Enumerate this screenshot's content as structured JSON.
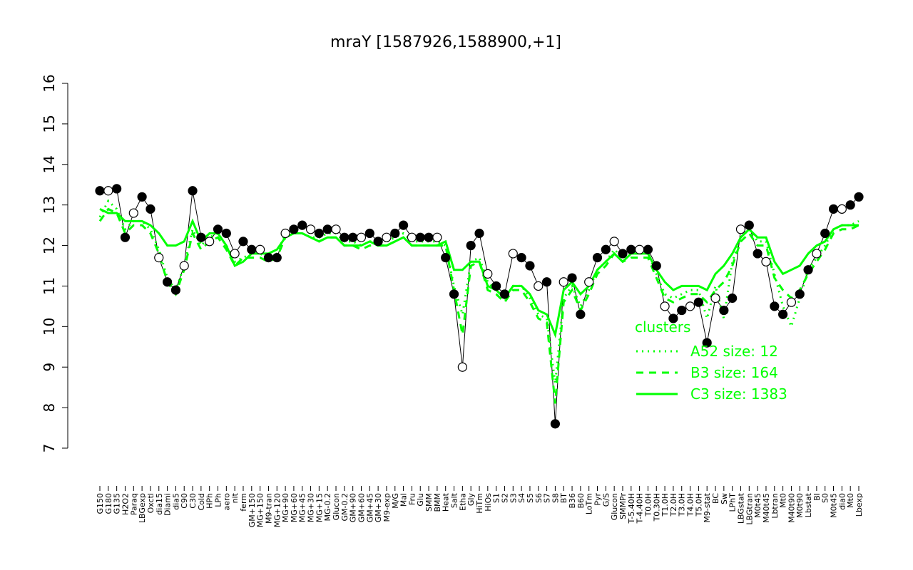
{
  "chart_data": {
    "type": "line",
    "title": "mraY [1587926,1588900,+1]",
    "ylim": [
      7,
      16
    ],
    "yticks": [
      7,
      8,
      9,
      10,
      11,
      12,
      13,
      14,
      15,
      16
    ],
    "grid": false,
    "legend": {
      "title": "clusters",
      "placement": "right",
      "entries": [
        {
          "label": "A52 size: 12",
          "style": "dotted",
          "color": "#00ff00"
        },
        {
          "label": "B3 size: 164",
          "style": "dashed",
          "color": "#00ff00"
        },
        {
          "label": "C3 size: 1383",
          "style": "solid",
          "color": "#00ff00"
        }
      ]
    },
    "x_tick_labels": [
      "G150",
      "G180",
      "G135",
      "H2O2",
      "Paraq",
      "LBGexp",
      "Oxctl",
      "dia15",
      "Diami",
      "dia5",
      "C90",
      "C30",
      "Cold",
      "HPh",
      "LPh",
      "aero",
      "nit",
      "ferm",
      "GM+150",
      "MG+150",
      "M9-tran",
      "MG+120",
      "MG+90",
      "MG+60",
      "MG+45",
      "MG+30",
      "MG+15",
      "MG-0.2",
      "Glucon",
      "GM-0.2",
      "GM+90",
      "GM+60",
      "GM+45",
      "GM+30",
      "M9-exp",
      "M/G",
      "Mal",
      "Fru",
      "Glu",
      "SMM",
      "BMM",
      "Heat",
      "Salt",
      "Etha",
      "Gly",
      "HiTm",
      "HiOs",
      "S1",
      "S2",
      "S3",
      "S4",
      "S5",
      "S6",
      "S7",
      "S8",
      "BT",
      "B36",
      "B60",
      "LoTm",
      "Pyr",
      "G/S",
      "Glucon",
      "SMMPr",
      "T-5.40H",
      "T-4.40H",
      "T0.0H",
      "T0.30H",
      "T1.0H",
      "T2.0H",
      "T3.0H",
      "T4.0H",
      "T5.0H",
      "M9-stat",
      "BC",
      "Sw",
      "LPhT",
      "LBGstat",
      "LBGtran",
      "M0t45",
      "M40t45",
      "Lbtran",
      "Mt0",
      "M40t90",
      "M0t90",
      "Lbstat",
      "BI",
      "S0",
      "M0t45",
      "dia0",
      "Mt0",
      "Lbexp"
    ],
    "series": [
      {
        "name": "",
        "values": [
          13.35,
          13.35,
          13.4,
          12.2,
          12.8,
          13.2,
          12.9,
          11.7,
          11.1,
          10.9,
          11.5,
          13.35,
          12.2,
          12.1,
          12.4,
          12.3,
          11.8,
          12.1,
          11.9,
          11.9,
          11.7,
          11.7,
          12.3,
          12.4,
          12.5,
          12.4,
          12.3,
          12.4,
          12.4,
          12.2,
          12.2,
          12.2,
          12.3,
          12.1,
          12.2,
          12.3,
          12.5,
          12.2,
          12.2,
          12.2,
          12.2,
          11.7,
          10.8,
          9.0,
          12.0,
          12.3,
          11.3,
          11.0,
          10.8,
          11.8,
          11.7,
          11.5,
          11.0,
          11.1,
          7.6,
          11.1,
          11.2,
          10.3,
          11.1,
          11.7,
          11.9,
          12.1,
          11.8,
          11.9,
          11.9,
          11.9,
          11.5,
          10.5,
          10.2,
          10.4,
          10.5,
          10.6,
          9.6,
          10.7,
          10.4,
          10.7,
          12.4,
          12.5,
          11.8,
          11.6,
          10.5,
          10.3,
          10.6,
          10.8,
          11.4,
          11.8,
          12.3,
          12.9,
          12.9,
          13.0,
          13.2
        ]
      },
      {
        "name": "C3 size: 1383",
        "values": [
          12.9,
          12.8,
          12.8,
          12.6,
          12.6,
          12.6,
          12.5,
          12.3,
          12.0,
          12.0,
          12.1,
          12.6,
          12.1,
          12.3,
          12.3,
          12.0,
          11.5,
          11.6,
          11.8,
          11.8,
          11.8,
          11.9,
          12.2,
          12.3,
          12.3,
          12.2,
          12.1,
          12.2,
          12.2,
          12.0,
          12.0,
          12.0,
          12.1,
          12.0,
          12.0,
          12.1,
          12.2,
          12.0,
          12.0,
          12.0,
          12.0,
          12.1,
          11.4,
          11.4,
          11.6,
          11.6,
          11.0,
          10.9,
          10.7,
          11.0,
          11.0,
          10.8,
          10.4,
          10.3,
          9.8,
          10.9,
          11.1,
          10.8,
          11.0,
          11.4,
          11.6,
          11.8,
          11.6,
          11.8,
          11.8,
          11.8,
          11.4,
          11.1,
          10.9,
          11.0,
          11.0,
          11.0,
          10.9,
          11.3,
          11.5,
          11.8,
          12.2,
          12.4,
          12.2,
          12.2,
          11.6,
          11.3,
          11.4,
          11.5,
          11.8,
          12.0,
          12.1,
          12.4,
          12.5,
          12.5,
          12.5
        ]
      },
      {
        "name": "B3 size: 164",
        "values": [
          12.6,
          12.9,
          12.8,
          12.3,
          12.5,
          12.5,
          12.3,
          11.8,
          11.1,
          10.8,
          11.4,
          12.3,
          11.9,
          12.1,
          12.2,
          11.9,
          11.5,
          11.7,
          11.7,
          11.7,
          11.6,
          11.7,
          12.2,
          12.3,
          12.3,
          12.2,
          12.1,
          12.2,
          12.2,
          12.0,
          12.0,
          11.9,
          12.0,
          12.0,
          12.0,
          12.1,
          12.2,
          12.0,
          12.0,
          12.0,
          12.0,
          12.0,
          10.9,
          9.8,
          11.5,
          11.6,
          10.9,
          10.8,
          10.6,
          10.9,
          10.9,
          10.6,
          10.2,
          10.1,
          8.1,
          10.6,
          10.9,
          10.4,
          10.8,
          11.3,
          11.5,
          11.8,
          11.6,
          11.7,
          11.7,
          11.7,
          11.2,
          10.7,
          10.6,
          10.7,
          10.8,
          10.8,
          10.6,
          10.9,
          11.1,
          11.5,
          12.1,
          12.3,
          12.0,
          12.0,
          11.2,
          10.9,
          10.7,
          10.9,
          11.3,
          11.6,
          11.9,
          12.3,
          12.4,
          12.4,
          12.5
        ]
      },
      {
        "name": "A52 size: 12",
        "values": [
          12.7,
          13.1,
          12.9,
          12.4,
          12.6,
          12.6,
          12.4,
          11.9,
          11.2,
          10.9,
          11.5,
          12.4,
          12.0,
          12.2,
          12.3,
          12.0,
          11.6,
          11.7,
          11.8,
          11.8,
          11.7,
          11.8,
          12.3,
          12.3,
          12.3,
          12.2,
          12.2,
          12.3,
          12.3,
          12.1,
          12.1,
          12.0,
          12.1,
          12.1,
          12.1,
          12.2,
          12.3,
          12.1,
          12.1,
          12.1,
          12.1,
          12.0,
          11.0,
          10.3,
          11.6,
          11.7,
          11.1,
          10.9,
          10.7,
          11.0,
          11.0,
          10.7,
          10.3,
          10.2,
          8.6,
          10.7,
          11.0,
          10.5,
          10.9,
          11.4,
          11.6,
          11.9,
          11.7,
          11.8,
          11.8,
          11.8,
          11.3,
          10.8,
          10.7,
          10.8,
          10.9,
          10.9,
          10.2,
          11.0,
          10.2,
          11.6,
          12.2,
          12.4,
          12.1,
          12.1,
          11.3,
          10.5,
          10.0,
          10.7,
          11.4,
          11.7,
          12.0,
          12.4,
          12.5,
          12.5,
          12.6
        ]
      }
    ]
  }
}
